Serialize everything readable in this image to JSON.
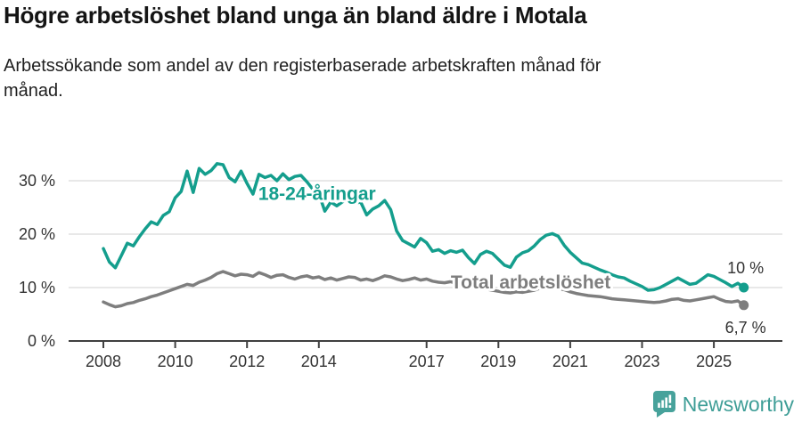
{
  "header": {
    "title": "Högre arbetslöshet bland unga än bland äldre i Motala",
    "subtitle": "Arbetssökande som andel av den registerbaserade arbetskraften månad för månad."
  },
  "chart_data": {
    "type": "line",
    "title": "Högre arbetslöshet bland unga än bland äldre i Motala",
    "subtitle": "Arbetssökande som andel av den registerbaserade arbetskraften månad för månad.",
    "x_unit": "year",
    "x_start_year": 2008,
    "x_step_years": 0.166667,
    "xlim": [
      2007.05,
      2026.9
    ],
    "ylim": [
      0,
      35
    ],
    "grid": "horizontal",
    "colors": {
      "young": "#149e8d",
      "total": "#7e7e7e",
      "grid": "#d9d9d9",
      "axis": "#404040",
      "text": "#333333"
    },
    "x_ticks": [
      {
        "value": 2008,
        "label": "2008"
      },
      {
        "value": 2010,
        "label": "2010"
      },
      {
        "value": 2012,
        "label": "2012"
      },
      {
        "value": 2014,
        "label": "2014"
      },
      {
        "value": 2017,
        "label": "2017"
      },
      {
        "value": 2019,
        "label": "2019"
      },
      {
        "value": 2021,
        "label": "2021"
      },
      {
        "value": 2023,
        "label": "2023"
      },
      {
        "value": 2025,
        "label": "2025"
      }
    ],
    "y_ticks": [
      {
        "value": 0,
        "label": "0 %"
      },
      {
        "value": 10,
        "label": "10 %"
      },
      {
        "value": 20,
        "label": "20 %"
      },
      {
        "value": 30,
        "label": "30 %"
      }
    ],
    "series": [
      {
        "name": "18-24-åringar",
        "color": "#149e8d",
        "end_label": "10 %",
        "end_marker": true,
        "label": {
          "text": "18-24-åringar",
          "year": 2013.95,
          "value": 27.6
        },
        "values": [
          17.3,
          14.8,
          13.7,
          16.0,
          18.3,
          17.8,
          19.5,
          21.0,
          22.3,
          21.8,
          23.5,
          24.2,
          26.8,
          28.0,
          31.8,
          27.8,
          32.3,
          31.2,
          31.9,
          33.2,
          33.0,
          30.6,
          29.8,
          31.8,
          29.5,
          27.5,
          31.2,
          30.6,
          31.0,
          30.0,
          31.3,
          30.2,
          30.8,
          31.0,
          29.8,
          28.4,
          27.6,
          24.3,
          26.0,
          25.3,
          26.1,
          26.6,
          25.8,
          26.0,
          23.6,
          24.7,
          25.3,
          26.3,
          24.6,
          20.6,
          18.8,
          18.2,
          17.6,
          19.2,
          18.4,
          16.8,
          17.1,
          16.4,
          16.9,
          16.6,
          17.0,
          15.6,
          14.5,
          16.2,
          16.8,
          16.4,
          15.3,
          14.2,
          13.8,
          15.7,
          16.5,
          16.9,
          17.8,
          19.0,
          19.8,
          20.1,
          19.6,
          17.9,
          16.6,
          15.6,
          14.6,
          14.3,
          13.8,
          13.3,
          12.9,
          12.4,
          12.0,
          11.8,
          11.2,
          10.7,
          10.2,
          9.5,
          9.6,
          10.0,
          10.6,
          11.2,
          11.8,
          11.2,
          10.6,
          10.8,
          11.6,
          12.4,
          12.1,
          11.5,
          10.9,
          10.2,
          10.8,
          10.0
        ]
      },
      {
        "name": "Total arbetslöshet",
        "color": "#7e7e7e",
        "end_label": "6,7 %",
        "end_marker": true,
        "label": {
          "text": "Total arbetslöshet",
          "year": 2019.9,
          "value": 11.0
        },
        "values": [
          7.3,
          6.8,
          6.4,
          6.6,
          7.0,
          7.2,
          7.6,
          7.9,
          8.3,
          8.6,
          9.0,
          9.4,
          9.8,
          10.2,
          10.6,
          10.4,
          11.0,
          11.4,
          11.9,
          12.6,
          13.0,
          12.6,
          12.2,
          12.5,
          12.4,
          12.1,
          12.8,
          12.4,
          11.9,
          12.3,
          12.4,
          11.9,
          11.6,
          12.0,
          12.2,
          11.8,
          12.0,
          11.5,
          11.8,
          11.4,
          11.7,
          12.0,
          11.9,
          11.4,
          11.6,
          11.3,
          11.7,
          12.2,
          12.0,
          11.6,
          11.3,
          11.5,
          11.8,
          11.4,
          11.6,
          11.2,
          11.0,
          10.9,
          11.1,
          10.8,
          10.5,
          10.2,
          9.9,
          10.0,
          9.7,
          9.5,
          9.3,
          9.1,
          9.0,
          9.2,
          9.1,
          9.3,
          9.5,
          9.9,
          10.2,
          10.0,
          9.8,
          9.6,
          9.2,
          8.9,
          8.7,
          8.5,
          8.4,
          8.3,
          8.1,
          7.9,
          7.8,
          7.7,
          7.6,
          7.5,
          7.4,
          7.3,
          7.2,
          7.3,
          7.5,
          7.8,
          7.9,
          7.6,
          7.5,
          7.7,
          7.9,
          8.1,
          8.3,
          7.8,
          7.4,
          7.3,
          7.5,
          6.7
        ]
      }
    ]
  },
  "footer": {
    "brand": "Newsworthy",
    "logo_icon": "bar-chart-speech-bubble-icon",
    "brand_color": "#3f9e97",
    "logo_color": "#47a29b"
  }
}
